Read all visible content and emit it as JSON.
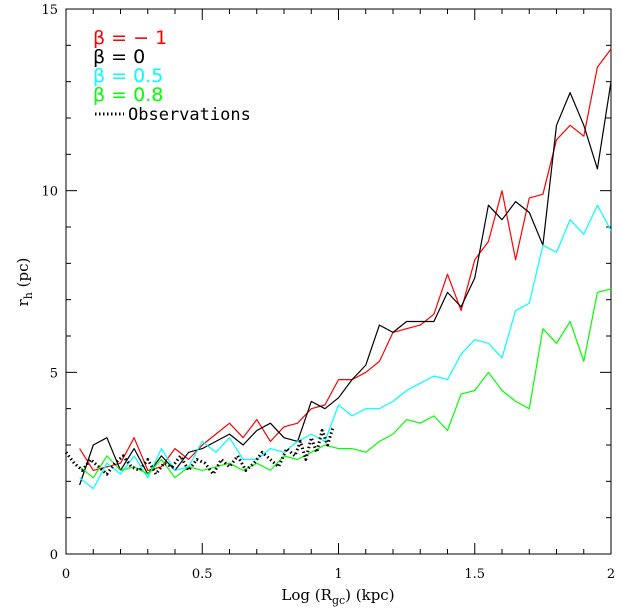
{
  "chart_data": {
    "type": "line",
    "xlabel": "Log (R",
    "xlabel_sub": "gc",
    "xlabel_tail": ") (kpc)",
    "ylabel": "r",
    "ylabel_sub": "h",
    "ylabel_tail": " (pc)",
    "xlim": [
      0,
      2
    ],
    "ylim": [
      0,
      15
    ],
    "xticks": [
      0,
      0.5,
      1,
      1.5,
      2
    ],
    "xtick_labels": [
      "0",
      "0.5",
      "1",
      "1.5",
      "2"
    ],
    "yticks": [
      0,
      5,
      10,
      15
    ],
    "ytick_labels": [
      "0",
      "5",
      "10",
      "15"
    ],
    "legend_position": "top-left",
    "series": [
      {
        "name": "β = − 1",
        "color": "#ff0000",
        "style": "solid",
        "x": [
          0.05,
          0.1,
          0.15,
          0.2,
          0.25,
          0.3,
          0.35,
          0.4,
          0.45,
          0.5,
          0.55,
          0.6,
          0.65,
          0.7,
          0.75,
          0.8,
          0.85,
          0.9,
          0.95,
          1.0,
          1.05,
          1.1,
          1.15,
          1.2,
          1.25,
          1.3,
          1.35,
          1.4,
          1.45,
          1.5,
          1.55,
          1.6,
          1.65,
          1.7,
          1.75,
          1.8,
          1.85,
          1.9,
          1.95,
          2.0
        ],
        "y": [
          2.9,
          2.3,
          2.4,
          2.5,
          3.2,
          2.3,
          2.4,
          2.9,
          2.6,
          3.0,
          3.3,
          3.6,
          3.2,
          3.7,
          3.1,
          3.5,
          3.6,
          4.0,
          4.1,
          4.8,
          4.8,
          5.0,
          5.3,
          6.1,
          6.2,
          6.3,
          6.6,
          7.7,
          6.7,
          8.1,
          8.6,
          10.0,
          8.1,
          9.8,
          9.9,
          11.4,
          11.8,
          11.5,
          13.4,
          13.9
        ]
      },
      {
        "name": "β = 0",
        "color": "#000000",
        "style": "solid",
        "x": [
          0.05,
          0.1,
          0.15,
          0.2,
          0.25,
          0.3,
          0.35,
          0.4,
          0.45,
          0.5,
          0.55,
          0.6,
          0.65,
          0.7,
          0.75,
          0.8,
          0.85,
          0.9,
          0.95,
          1.0,
          1.05,
          1.1,
          1.15,
          1.2,
          1.25,
          1.3,
          1.35,
          1.4,
          1.45,
          1.5,
          1.55,
          1.6,
          1.65,
          1.7,
          1.75,
          1.8,
          1.85,
          1.9,
          1.95,
          2.0
        ],
        "y": [
          1.9,
          3.0,
          3.2,
          2.3,
          2.9,
          2.2,
          2.7,
          2.3,
          2.8,
          2.9,
          3.1,
          3.3,
          3.0,
          3.4,
          3.6,
          3.2,
          3.1,
          4.2,
          4.0,
          4.3,
          4.8,
          5.2,
          6.3,
          6.1,
          6.4,
          6.4,
          6.4,
          7.2,
          6.8,
          7.6,
          9.6,
          9.2,
          9.7,
          9.4,
          8.5,
          11.8,
          12.7,
          11.8,
          10.6,
          13.0
        ]
      },
      {
        "name": "β = 0.5",
        "color": "#00ffff",
        "style": "solid",
        "x": [
          0.05,
          0.1,
          0.15,
          0.2,
          0.25,
          0.3,
          0.35,
          0.4,
          0.45,
          0.5,
          0.55,
          0.6,
          0.65,
          0.7,
          0.75,
          0.8,
          0.85,
          0.9,
          0.95,
          1.0,
          1.05,
          1.1,
          1.15,
          1.2,
          1.25,
          1.3,
          1.35,
          1.4,
          1.45,
          1.5,
          1.55,
          1.6,
          1.65,
          1.7,
          1.75,
          1.8,
          1.85,
          1.9,
          1.95,
          2.0
        ],
        "y": [
          2.1,
          1.8,
          2.5,
          2.2,
          2.7,
          2.1,
          2.9,
          2.3,
          2.4,
          3.1,
          2.8,
          3.2,
          2.6,
          2.6,
          2.9,
          2.8,
          3.1,
          3.3,
          3.1,
          4.1,
          3.8,
          4.0,
          4.0,
          4.2,
          4.5,
          4.7,
          4.9,
          4.8,
          5.5,
          5.9,
          5.8,
          5.4,
          6.7,
          6.9,
          8.5,
          8.3,
          9.2,
          8.8,
          9.6,
          8.9
        ]
      },
      {
        "name": "β = 0.8",
        "color": "#00ff00",
        "style": "solid",
        "x": [
          0.05,
          0.1,
          0.15,
          0.2,
          0.25,
          0.3,
          0.35,
          0.4,
          0.45,
          0.5,
          0.55,
          0.6,
          0.65,
          0.7,
          0.75,
          0.8,
          0.85,
          0.9,
          0.95,
          1.0,
          1.05,
          1.1,
          1.15,
          1.2,
          1.25,
          1.3,
          1.35,
          1.4,
          1.45,
          1.5,
          1.55,
          1.6,
          1.65,
          1.7,
          1.75,
          1.8,
          1.85,
          1.9,
          1.95,
          2.0
        ],
        "y": [
          2.4,
          2.1,
          2.7,
          2.3,
          2.4,
          2.2,
          2.6,
          2.1,
          2.4,
          2.3,
          2.4,
          2.5,
          2.3,
          2.5,
          2.3,
          2.7,
          2.6,
          2.8,
          3.0,
          2.9,
          2.9,
          2.8,
          3.1,
          3.3,
          3.7,
          3.6,
          3.8,
          3.4,
          4.4,
          4.5,
          5.0,
          4.5,
          4.2,
          4.0,
          6.2,
          5.8,
          6.4,
          5.3,
          7.2,
          7.3
        ]
      },
      {
        "name": "Observations",
        "color": "#000000",
        "style": "dotted",
        "x": [
          0.0,
          0.03,
          0.06,
          0.09,
          0.12,
          0.15,
          0.18,
          0.21,
          0.24,
          0.27,
          0.3,
          0.33,
          0.36,
          0.39,
          0.42,
          0.45,
          0.48,
          0.51,
          0.54,
          0.57,
          0.6,
          0.63,
          0.66,
          0.69,
          0.72,
          0.75,
          0.78,
          0.81,
          0.84,
          0.86,
          0.88,
          0.9,
          0.92,
          0.94,
          0.96,
          0.98
        ],
        "y": [
          2.8,
          2.5,
          2.3,
          2.6,
          2.4,
          2.2,
          2.5,
          2.7,
          2.4,
          2.3,
          2.6,
          2.2,
          2.5,
          2.4,
          2.7,
          2.3,
          2.6,
          2.5,
          2.2,
          2.6,
          2.4,
          2.7,
          2.3,
          2.5,
          2.8,
          2.6,
          2.4,
          2.9,
          2.7,
          3.1,
          2.6,
          3.2,
          2.8,
          3.4,
          3.0,
          3.5
        ]
      }
    ]
  }
}
